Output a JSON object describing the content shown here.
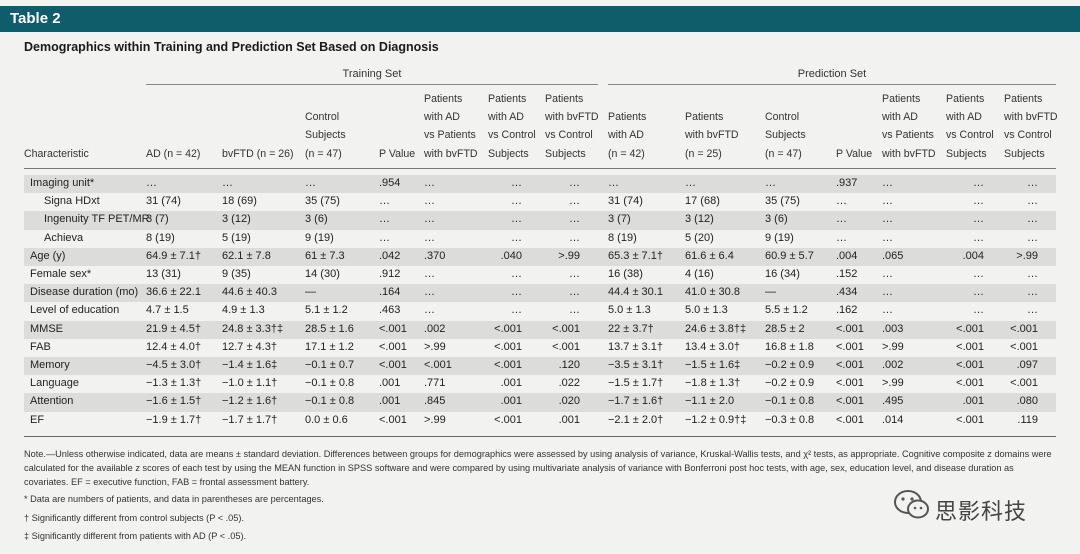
{
  "title_bar": "Table 2",
  "caption": "Demographics within Training and Prediction Set Based on Diagnosis",
  "groups": {
    "training": "Training Set",
    "prediction": "Prediction Set"
  },
  "columns": {
    "characteristic": "Characteristic",
    "ad": [
      "AD (n = 42)"
    ],
    "bvftd": [
      "bvFTD (n = 26)"
    ],
    "control": [
      "Control",
      "Subjects",
      "(n = 47)"
    ],
    "pvalue": [
      "P Value"
    ],
    "ad_vs_bvftd": [
      "Patients",
      "with AD",
      "vs Patients",
      "with bvFTD"
    ],
    "ad_vs_control": [
      "Patients",
      "with AD",
      "vs Control",
      "Subjects"
    ],
    "bvftd_vs_control": [
      "Patients",
      "with bvFTD",
      "vs Control",
      "Subjects"
    ],
    "p_ad": [
      "Patients",
      "with AD",
      "(n = 42)"
    ],
    "p_bvftd": [
      "Patients",
      "with bvFTD",
      "(n = 25)"
    ],
    "p_control": [
      "Control",
      "Subjects",
      "(n = 47)"
    ],
    "p_pvalue": [
      "P Value"
    ],
    "p_ad_vs_bvftd": [
      "Patients",
      "with AD",
      "vs Patients",
      "with bvFTD"
    ],
    "p_ad_vs_control": [
      "Patients",
      "with AD",
      "vs Control",
      "Subjects"
    ],
    "p_bvftd_vs_control": [
      "Patients",
      "with bvFTD",
      "vs Control",
      "Subjects"
    ]
  },
  "rows": [
    {
      "label": "Imaging unit*",
      "indent": false,
      "c": [
        "…",
        "…",
        "…",
        ".954",
        "…",
        "…",
        "…",
        "…",
        "…",
        "…",
        ".937",
        "…",
        "…",
        "…"
      ]
    },
    {
      "label": "Signa HDxt",
      "indent": true,
      "c": [
        "31 (74)",
        "18 (69)",
        "35 (75)",
        "…",
        "…",
        "…",
        "…",
        "31 (74)",
        "17 (68)",
        "35 (75)",
        "…",
        "…",
        "…",
        "…"
      ]
    },
    {
      "label": "Ingenuity TF PET/MR",
      "indent": true,
      "c": [
        "3 (7)",
        "3 (12)",
        "3 (6)",
        "…",
        "…",
        "…",
        "…",
        "3 (7)",
        "3 (12)",
        "3 (6)",
        "…",
        "…",
        "…",
        "…"
      ]
    },
    {
      "label": "Achieva",
      "indent": true,
      "c": [
        "8 (19)",
        "5 (19)",
        "9 (19)",
        "…",
        "…",
        "…",
        "…",
        "8 (19)",
        "5 (20)",
        "9 (19)",
        "…",
        "…",
        "…",
        "…"
      ]
    },
    {
      "label": "Age (y)",
      "indent": false,
      "c": [
        "64.9 ± 7.1†",
        "62.1 ± 7.8",
        "61 ± 7.3",
        ".042",
        ".370",
        ".040",
        ">.99",
        "65.3 ± 7.1†",
        "61.6 ± 6.4",
        "60.9 ± 5.7",
        ".004",
        ".065",
        ".004",
        ">.99"
      ]
    },
    {
      "label": "Female sex*",
      "indent": false,
      "c": [
        "13 (31)",
        "9 (35)",
        "14 (30)",
        ".912",
        "…",
        "…",
        "…",
        "16 (38)",
        "4 (16)",
        "16 (34)",
        ".152",
        "…",
        "…",
        "…"
      ]
    },
    {
      "label": "Disease duration (mo)",
      "indent": false,
      "c": [
        "36.6 ± 22.1",
        "44.6 ± 40.3",
        "—",
        ".164",
        "…",
        "…",
        "…",
        "44.4 ± 30.1",
        "41.0 ± 30.8",
        "—",
        ".434",
        "…",
        "…",
        "…"
      ]
    },
    {
      "label": "Level of education",
      "indent": false,
      "c": [
        "4.7 ± 1.5",
        "4.9 ± 1.3",
        "5.1 ± 1.2",
        ".463",
        "…",
        "…",
        "…",
        "5.0 ± 1.3",
        "5.0 ± 1.3",
        "5.5 ± 1.2",
        ".162",
        "…",
        "…",
        "…"
      ]
    },
    {
      "label": "MMSE",
      "indent": false,
      "c": [
        "21.9 ± 4.5†",
        "24.8 ± 3.3†‡",
        "28.5 ± 1.6",
        "<.001",
        ".002",
        "<.001",
        "<.001",
        "22 ± 3.7†",
        "24.6 ± 3.8†‡",
        "28.5 ± 2",
        "<.001",
        ".003",
        "<.001",
        "<.001"
      ]
    },
    {
      "label": "FAB",
      "indent": false,
      "c": [
        "12.4 ± 4.0†",
        "12.7 ± 4.3†",
        "17.1 ± 1.2",
        "<.001",
        ">.99",
        "<.001",
        "<.001",
        "13.7 ± 3.1†",
        "13.4 ± 3.0†",
        "16.8 ± 1.8",
        "<.001",
        ">.99",
        "<.001",
        "<.001"
      ]
    },
    {
      "label": "Memory",
      "indent": false,
      "c": [
        "−4.5 ± 3.0†",
        "−1.4 ± 1.6‡",
        "−0.1 ± 0.7",
        "<.001",
        "<.001",
        "<.001",
        ".120",
        "−3.5 ± 3.1†",
        "−1.5 ± 1.6‡",
        "−0.2 ± 0.9",
        "<.001",
        ".002",
        "<.001",
        ".097"
      ]
    },
    {
      "label": "Language",
      "indent": false,
      "c": [
        "−1.3 ± 1.3†",
        "−1.0 ± 1.1†",
        "−0.1 ± 0.8",
        ".001",
        ".771",
        ".001",
        ".022",
        "−1.5 ± 1.7†",
        "−1.8 ± 1.3†",
        "−0.2 ± 0.9",
        "<.001",
        ">.99",
        "<.001",
        "<.001"
      ]
    },
    {
      "label": "Attention",
      "indent": false,
      "c": [
        "−1.6 ± 1.5†",
        "−1.2 ± 1.6†",
        "−0.1 ± 0.8",
        ".001",
        ".845",
        ".001",
        ".020",
        "−1.7 ± 1.6†",
        "−1.1 ± 2.0",
        "−0.1 ± 0.8",
        "<.001",
        ".495",
        ".001",
        ".080"
      ]
    },
    {
      "label": "EF",
      "indent": false,
      "c": [
        "−1.9 ± 1.7†",
        "−1.7 ± 1.7†",
        "0.0 ± 0.6",
        "<.001",
        ">.99",
        "<.001",
        ".001",
        "−2.1 ± 2.0†",
        "−1.2 ± 0.9†‡",
        "−0.3 ± 0.8",
        "<.001",
        ".014",
        "<.001",
        ".119"
      ]
    }
  ],
  "note": "Note.—Unless otherwise indicated, data are means ± standard deviation. Differences between groups for demographics were assessed by using analysis of variance, Kruskal-Wallis tests, and χ² tests, as appropriate. Cognitive composite z domains were calculated for the available z scores of each test by using the MEAN function in SPSS software and were compared by using multivariate analysis of variance with Bonferroni post hoc tests, with age, sex, education level, and disease duration as covariates. EF = executive function, FAB = frontal assessment battery.",
  "footnotes": [
    "* Data are numbers of patients, and data in parentheses are percentages.",
    "† Significantly different from control subjects (P < .05).",
    "‡ Significantly different from patients with AD (P < .05)."
  ],
  "watermark": {
    "text": "思影科技",
    "icon": "wechat-icon"
  },
  "colors": {
    "header_bar": "#0f5d6b",
    "row_shade": "#dcdcdb",
    "background": "#f2f2f0"
  }
}
